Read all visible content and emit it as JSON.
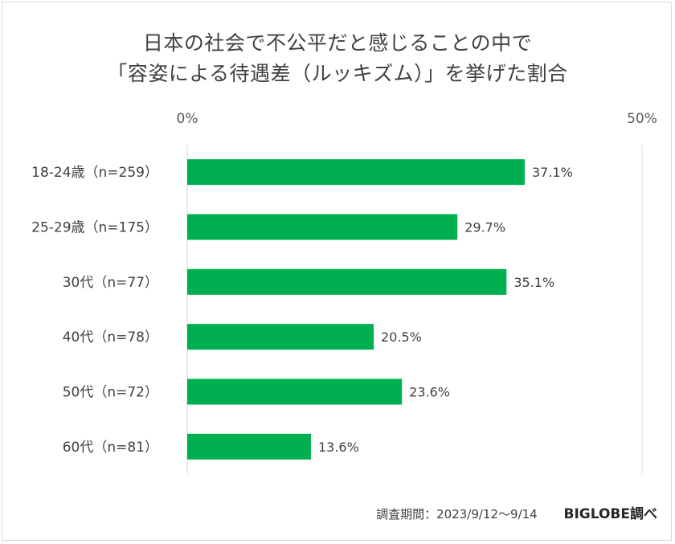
{
  "chart_data": {
    "type": "bar",
    "orientation": "horizontal",
    "title_line1": "日本の社会で不公平だと感じることの中で",
    "title_line2": "「容姿による待遇差（ルッキズム）」を挙げた割合",
    "categories": [
      "18-24歳（n=259）",
      "25-29歳（n=175）",
      "30代（n=77）",
      "40代（n=78）",
      "50代（n=72）",
      "60代（n=81）"
    ],
    "values": [
      37.1,
      29.7,
      35.1,
      20.5,
      23.6,
      13.6
    ],
    "value_labels": [
      "37.1%",
      "29.7%",
      "35.1%",
      "20.5%",
      "23.6%",
      "13.6%"
    ],
    "xlim": [
      0,
      50
    ],
    "x_ticks": [
      "0%",
      "50%"
    ],
    "grid": true,
    "bar_color": "#00b050"
  },
  "footer": {
    "period": "調査期間：2023/9/12～9/14",
    "brand": "BIGLOBE調べ"
  }
}
